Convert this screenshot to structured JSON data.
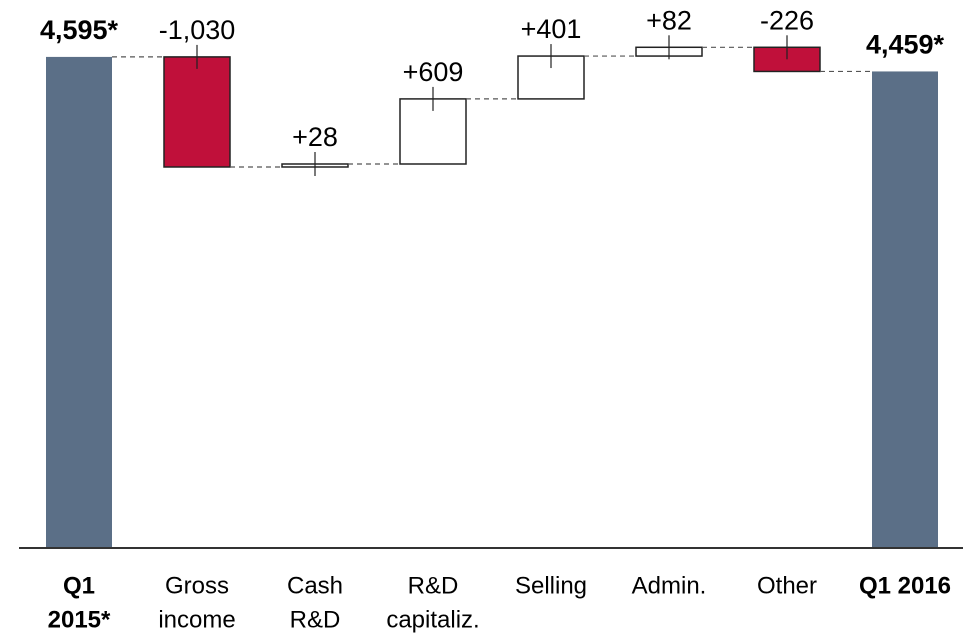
{
  "chart_data": {
    "type": "waterfall",
    "categories": [
      [
        "Q1",
        "2015*"
      ],
      [
        "Gross",
        "income"
      ],
      [
        "Cash",
        "R&D"
      ],
      [
        "R&D",
        "capitaliz."
      ],
      [
        "Selling"
      ],
      [
        "Admin."
      ],
      [
        "Other"
      ],
      [
        "Q1 2016"
      ]
    ],
    "values": [
      4595,
      -1030,
      28,
      609,
      401,
      82,
      -226,
      4459
    ],
    "value_labels": [
      "4,595*",
      "-1,030",
      "+28",
      "+609",
      "+401",
      "+82",
      "-226",
      "4,459*"
    ],
    "measures": [
      "total",
      "relative",
      "relative",
      "relative",
      "relative",
      "relative",
      "relative",
      "total"
    ],
    "colors": {
      "total": "#5b6f87",
      "decrease": "#c0103a",
      "increase": "#ffffff"
    },
    "ylim": [
      0,
      4800
    ]
  }
}
